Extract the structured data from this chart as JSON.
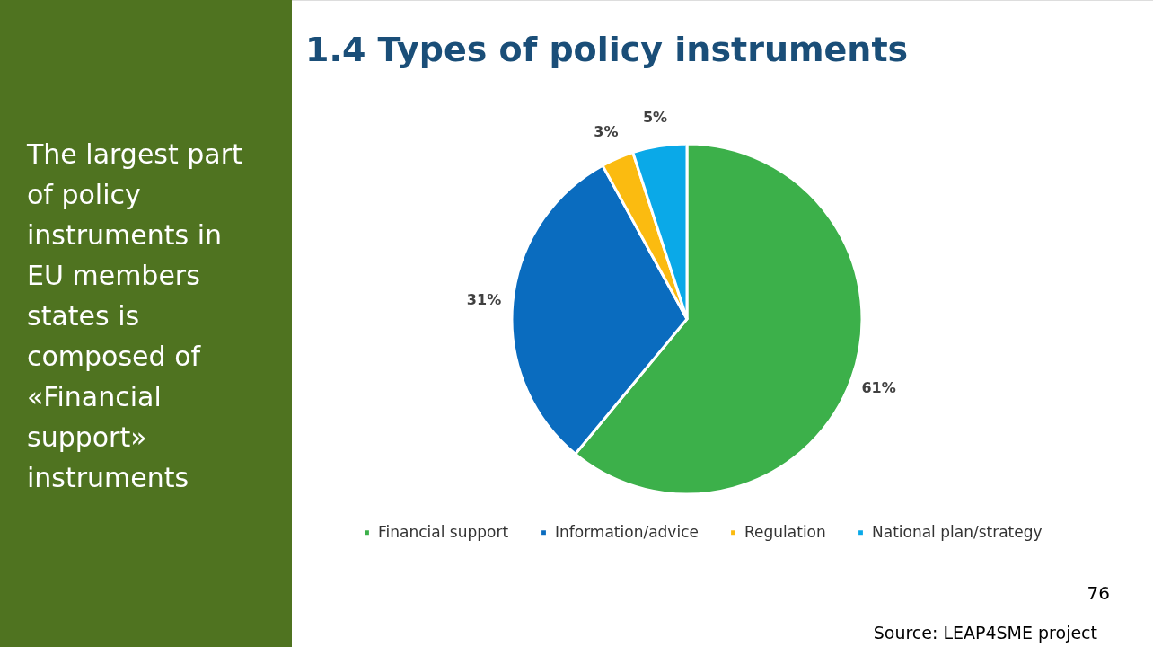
{
  "chart_data": {
    "type": "pie",
    "title": "1.4 Types of policy instruments",
    "categories": [
      "Financial support",
      "Information/advice",
      "Regulation",
      "National plan/strategy"
    ],
    "values": [
      61,
      31,
      3,
      5
    ],
    "colors": [
      "#3cb04a",
      "#0a6cbf",
      "#fbbb10",
      "#0aa9e8"
    ],
    "value_labels": [
      "61%",
      "31%",
      "3%",
      "5%"
    ],
    "legend": "bottom",
    "annotations": [
      "The largest part\nof policy\ninstruments in\nEU members\nstates is\ncomposed of\n«Financial\nsupport»\ninstruments",
      "76",
      "Source: LEAP4SME project"
    ]
  }
}
